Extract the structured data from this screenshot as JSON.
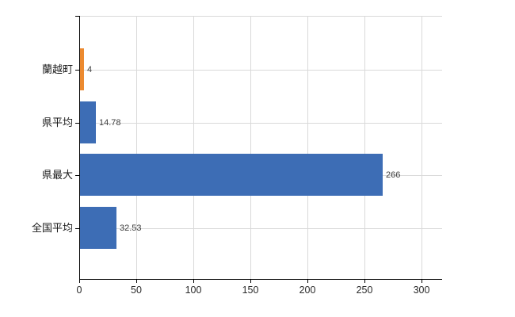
{
  "chart_data": {
    "type": "bar",
    "orientation": "horizontal",
    "title": "",
    "categories": [
      "蘭越町",
      "県平均",
      "県最大",
      "全国平均"
    ],
    "values": [
      4,
      14.78,
      266,
      32.53
    ],
    "value_labels": [
      "4",
      "14.78",
      "266",
      "32.53"
    ],
    "bar_colors": [
      "#ec8a30",
      "#3d6db5",
      "#3d6db5",
      "#3d6db5"
    ],
    "x_tick_values": [
      0,
      50,
      100,
      150,
      200,
      250,
      300
    ],
    "x_tick_labels": [
      "0",
      "50",
      "100",
      "150",
      "200",
      "250",
      "300"
    ],
    "xlim": [
      0,
      318
    ],
    "grid": true,
    "legend": false,
    "colors": {
      "grid": "#d9d9d9",
      "axis": "#000000",
      "category_label": "#1a1a1a",
      "value_label": "#3d3d3d",
      "tick_label": "#2b2b2b",
      "background": "#ffffff"
    }
  }
}
